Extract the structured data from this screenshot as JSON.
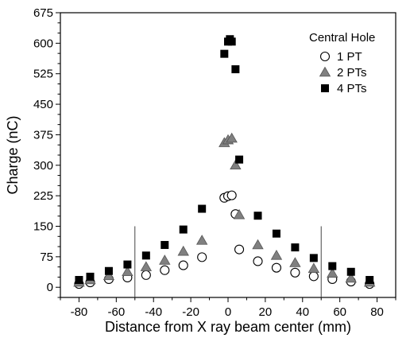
{
  "chart_data": {
    "type": "scatter",
    "title": "",
    "xlabel": "Distance from X ray beam center (mm)",
    "ylabel": "Charge (nC)",
    "xlim": [
      -90,
      90
    ],
    "ylim": [
      -25,
      675
    ],
    "xticks": [
      -80,
      -60,
      -40,
      -20,
      0,
      20,
      40,
      60,
      80
    ],
    "yticks": [
      0,
      75,
      150,
      225,
      300,
      375,
      450,
      525,
      600,
      675
    ],
    "xtick_labels": [
      "-80",
      "-60",
      "-40",
      "-20",
      "0",
      "20",
      "40",
      "60",
      "80"
    ],
    "ytick_labels": [
      "0",
      "75",
      "150",
      "225",
      "300",
      "375",
      "450",
      "525",
      "600",
      "675"
    ],
    "vertical_lines": [
      -50,
      50
    ],
    "legend": {
      "title": "Central Hole",
      "position": "top-right"
    },
    "series": [
      {
        "name": "1 PT",
        "marker": "circle-open",
        "color": "#000000",
        "points": [
          [
            -80,
            8
          ],
          [
            -74,
            12
          ],
          [
            -64,
            20
          ],
          [
            -54,
            24
          ],
          [
            -44,
            30
          ],
          [
            -34,
            42
          ],
          [
            -24,
            54
          ],
          [
            -14,
            74
          ],
          [
            -2,
            220
          ],
          [
            0,
            224
          ],
          [
            2,
            226
          ],
          [
            4,
            180
          ],
          [
            6,
            93
          ],
          [
            16,
            64
          ],
          [
            26,
            48
          ],
          [
            36,
            36
          ],
          [
            46,
            27
          ],
          [
            56,
            20
          ],
          [
            66,
            14
          ],
          [
            76,
            8
          ]
        ]
      },
      {
        "name": "2 PTs",
        "marker": "triangle",
        "color": "#808080",
        "points": [
          [
            -80,
            12
          ],
          [
            -74,
            18
          ],
          [
            -64,
            28
          ],
          [
            -54,
            38
          ],
          [
            -44,
            50
          ],
          [
            -34,
            66
          ],
          [
            -24,
            88
          ],
          [
            -14,
            115
          ],
          [
            -2,
            355
          ],
          [
            0,
            362
          ],
          [
            2,
            366
          ],
          [
            4,
            300
          ],
          [
            6,
            178
          ],
          [
            16,
            104
          ],
          [
            26,
            78
          ],
          [
            36,
            60
          ],
          [
            46,
            46
          ],
          [
            56,
            34
          ],
          [
            66,
            22
          ],
          [
            76,
            12
          ]
        ]
      },
      {
        "name": "4 PTs",
        "marker": "square",
        "color": "#000000",
        "points": [
          [
            -80,
            18
          ],
          [
            -74,
            26
          ],
          [
            -64,
            40
          ],
          [
            -54,
            56
          ],
          [
            -44,
            78
          ],
          [
            -34,
            104
          ],
          [
            -24,
            142
          ],
          [
            -14,
            193
          ],
          [
            -2,
            574
          ],
          [
            0,
            604
          ],
          [
            1,
            610
          ],
          [
            2,
            604
          ],
          [
            4,
            536
          ],
          [
            6,
            314
          ],
          [
            16,
            176
          ],
          [
            26,
            132
          ],
          [
            36,
            98
          ],
          [
            46,
            72
          ],
          [
            56,
            52
          ],
          [
            66,
            38
          ],
          [
            76,
            18
          ]
        ]
      }
    ]
  }
}
